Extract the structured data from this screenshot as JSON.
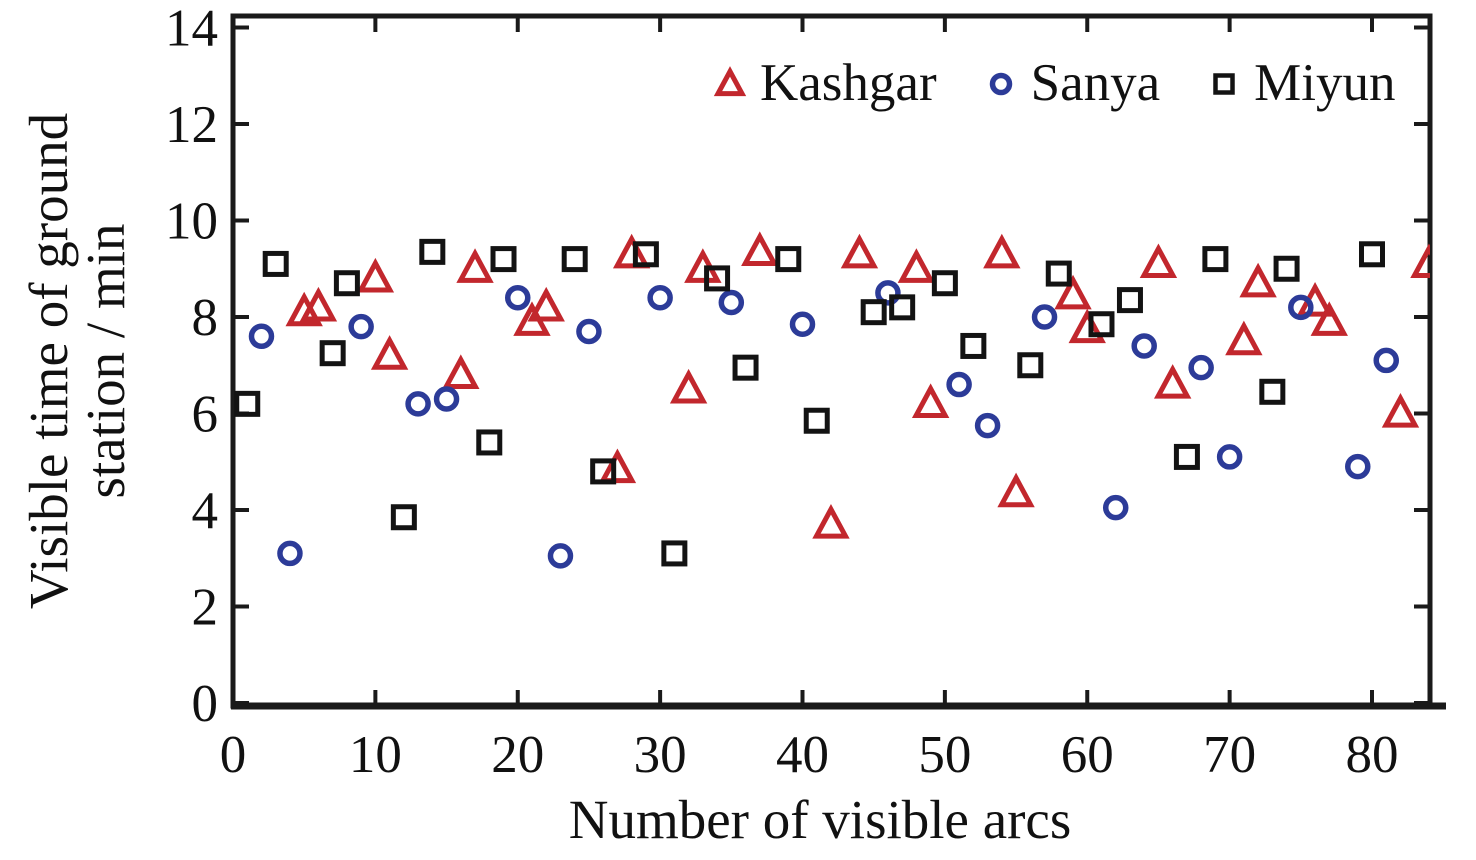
{
  "figure": {
    "background": "#ffffff",
    "axis_color": "#1a1a1a",
    "text_color": "#111111"
  },
  "chart_data": {
    "type": "scatter",
    "title": "",
    "xlabel": "Number of visible arcs",
    "ylabel": "Visible time of ground station / min",
    "ylabel_lines": [
      "Visible time of ground",
      "station / min"
    ],
    "xlim": [
      0,
      84.1
    ],
    "ylim": [
      0,
      14.25
    ],
    "xticks": [
      0,
      10,
      20,
      30,
      40,
      50,
      60,
      70,
      80
    ],
    "yticks": [
      0,
      2,
      4,
      6,
      8,
      10,
      12,
      14
    ],
    "grid": false,
    "legend_position": "top-right-inside",
    "series": [
      {
        "name": "Kashgar",
        "marker": "triangle",
        "color": "#c2272d",
        "points": [
          [
            5,
            8.1
          ],
          [
            6,
            8.2
          ],
          [
            10,
            8.8
          ],
          [
            11,
            7.2
          ],
          [
            16,
            6.8
          ],
          [
            17,
            9.0
          ],
          [
            21,
            7.9
          ],
          [
            22,
            8.2
          ],
          [
            27,
            4.85
          ],
          [
            28,
            9.3
          ],
          [
            32,
            6.5
          ],
          [
            33,
            9.0
          ],
          [
            37,
            9.35
          ],
          [
            42,
            3.7
          ],
          [
            44,
            9.3
          ],
          [
            48,
            9.0
          ],
          [
            49,
            6.2
          ],
          [
            54,
            9.3
          ],
          [
            55,
            4.35
          ],
          [
            59,
            8.45
          ],
          [
            60,
            7.75
          ],
          [
            65,
            9.1
          ],
          [
            66,
            6.6
          ],
          [
            71,
            7.5
          ],
          [
            72,
            8.7
          ],
          [
            76,
            8.3
          ],
          [
            77,
            7.9
          ],
          [
            82,
            6.0
          ],
          [
            84,
            9.1
          ]
        ]
      },
      {
        "name": "Sanya",
        "marker": "circle",
        "color": "#2c3b98",
        "points": [
          [
            2,
            7.6
          ],
          [
            4,
            3.1
          ],
          [
            9,
            7.8
          ],
          [
            13,
            6.2
          ],
          [
            15,
            6.3
          ],
          [
            20,
            8.4
          ],
          [
            23,
            3.05
          ],
          [
            25,
            7.7
          ],
          [
            30,
            8.4
          ],
          [
            35,
            8.3
          ],
          [
            40,
            7.85
          ],
          [
            46,
            8.5
          ],
          [
            51,
            6.6
          ],
          [
            53,
            5.75
          ],
          [
            57,
            8.0
          ],
          [
            62,
            4.05
          ],
          [
            64,
            7.4
          ],
          [
            68,
            6.95
          ],
          [
            70,
            5.1
          ],
          [
            75,
            8.2
          ],
          [
            79,
            4.9
          ],
          [
            81,
            7.1
          ]
        ]
      },
      {
        "name": "Miyun",
        "marker": "square",
        "color": "#131313",
        "points": [
          [
            1,
            6.2
          ],
          [
            3,
            9.1
          ],
          [
            7,
            7.25
          ],
          [
            8,
            8.7
          ],
          [
            12,
            3.85
          ],
          [
            14,
            9.35
          ],
          [
            18,
            5.4
          ],
          [
            19,
            9.2
          ],
          [
            24,
            9.2
          ],
          [
            26,
            4.8
          ],
          [
            29,
            9.3
          ],
          [
            31,
            3.1
          ],
          [
            34,
            8.8
          ],
          [
            36,
            6.95
          ],
          [
            39,
            9.2
          ],
          [
            41,
            5.85
          ],
          [
            45,
            8.1
          ],
          [
            47,
            8.2
          ],
          [
            50,
            8.7
          ],
          [
            52,
            7.4
          ],
          [
            56,
            7.0
          ],
          [
            58,
            8.9
          ],
          [
            61,
            7.85
          ],
          [
            63,
            8.35
          ],
          [
            67,
            5.1
          ],
          [
            69,
            9.2
          ],
          [
            73,
            6.45
          ],
          [
            74,
            9.0
          ],
          [
            80,
            9.3
          ]
        ]
      }
    ]
  }
}
